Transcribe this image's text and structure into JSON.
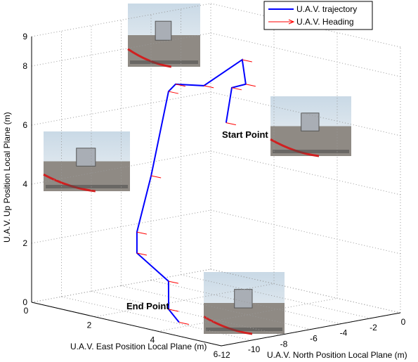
{
  "chart_data": {
    "type": "line3d",
    "xlabel": "U.A.V. East Position Local Plane (m)",
    "ylabel": "U.A.V. North Position Local Plane (m)",
    "zlabel": "U.A.V. Up Position Local Plane (m)",
    "xlim": [
      0,
      6
    ],
    "xticks": [
      0,
      2,
      4,
      6
    ],
    "ylim": [
      -12,
      0
    ],
    "yticks": [
      -12,
      -10,
      -8,
      -6,
      -4,
      -2,
      0
    ],
    "zlim": [
      0,
      9
    ],
    "zticks": [
      0,
      2,
      4,
      6,
      8,
      9
    ],
    "grid": true,
    "series": [
      {
        "name": "U.A.V. trajectory",
        "color": "#0000ff",
        "x": [
          1.43,
          1.61,
          1.58,
          1.94,
          1.67,
          1.72,
          1.97,
          1.42,
          0.97,
          0.97,
          1.97,
          3.39,
          3.72
        ],
        "y": [
          -2,
          -2,
          -1,
          -2,
          -4,
          -6,
          -7,
          -7,
          -7,
          -7,
          -7,
          -10,
          -10
        ],
        "z": [
          5.5,
          6.73,
          6.75,
          7.76,
          7.0,
          7.25,
          7.16,
          4.17,
          2.15,
          1.44,
          0.73,
          0.41,
          0.05
        ]
      },
      {
        "name": "U.A.V. Heading",
        "color": "#ff0000"
      }
    ],
    "annotations": [
      "Start Point",
      "End Point"
    ]
  }
}
